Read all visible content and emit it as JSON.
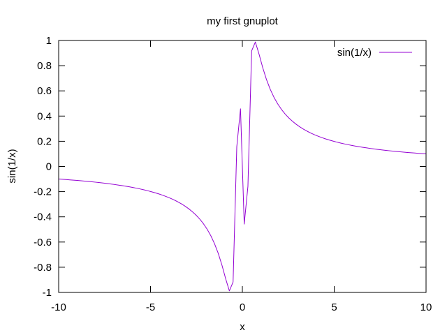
{
  "chart_data": {
    "type": "line",
    "title": "my first gnuplot",
    "xlabel": "x",
    "ylabel": "sin(1/x)",
    "xlim": [
      -10,
      10
    ],
    "ylim": [
      -1,
      1
    ],
    "xticks": [
      -10,
      -5,
      0,
      5,
      10
    ],
    "xtick_labels": [
      "-10",
      "-5",
      "0",
      "5",
      "10"
    ],
    "yticks": [
      -1,
      -0.8,
      -0.6,
      -0.4,
      -0.2,
      0,
      0.2,
      0.4,
      0.6,
      0.8,
      1
    ],
    "ytick_labels": [
      "-1",
      "-0.8",
      "-0.6",
      "-0.4",
      "-0.2",
      "0",
      "0.2",
      "0.4",
      "0.6",
      "0.8",
      "1"
    ],
    "grid": false,
    "legend_position": "top-right",
    "series": [
      {
        "name": "sin(1/x)",
        "color": "#9400d3",
        "function": "sin(1/x)",
        "samples": 100,
        "x": [],
        "y": []
      }
    ]
  }
}
